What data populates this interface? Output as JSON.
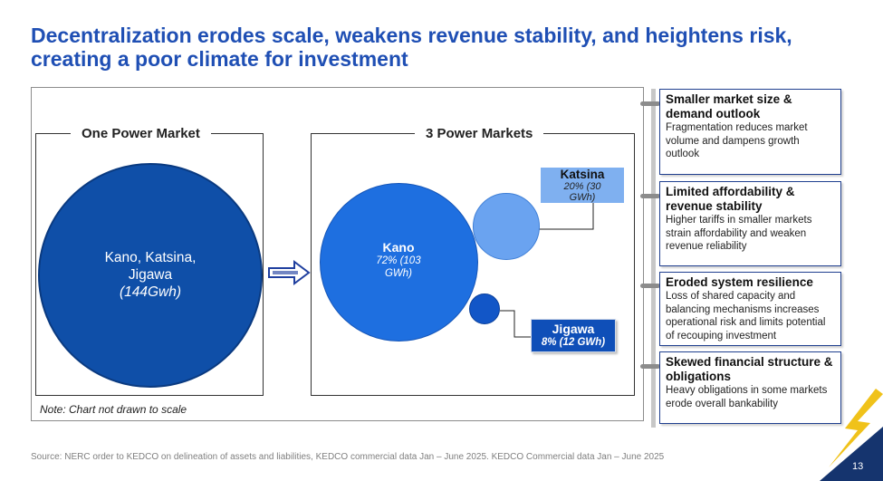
{
  "title": "Decentralization erodes scale, weakens revenue stability, and heightens risk, creating a poor climate for investment",
  "one_market": {
    "label": "One Power Market",
    "bubble_line1": "Kano, Katsina,",
    "bubble_line2": "Jigawa",
    "bubble_value": "(144Gwh)"
  },
  "three_markets": {
    "label": "3 Power Markets",
    "kano_name": "Kano",
    "kano_value": "72% (103 GWh)",
    "katsina_name": "Katsina",
    "katsina_value": "20% (30 GWh)",
    "jigawa_name": "Jigawa",
    "jigawa_value": "8% (12 GWh)"
  },
  "note": "Note: Chart not drawn to scale",
  "panels": [
    {
      "heading": "Smaller market size & demand outlook",
      "body": "Fragmentation reduces market volume and dampens growth outlook"
    },
    {
      "heading": "Limited affordability & revenue stability",
      "body": "Higher tariffs in smaller markets strain affordability and weaken revenue reliability"
    },
    {
      "heading": "Eroded system resilience",
      "body": "Loss of shared capacity and balancing mechanisms increases operational risk and limits potential of recouping investment"
    },
    {
      "heading": "Skewed financial structure & obligations",
      "body": "Heavy obligations in some markets erode overall bankability"
    }
  ],
  "source": "Source: NERC order to KEDCO on delineation of assets and liabilities, KEDCO commercial data Jan – June 2025. KEDCO Commercial data Jan – June 2025",
  "page_number": "13",
  "colors": {
    "title": "#1f4fb4",
    "big_bubble": "#0f4fa8",
    "kano_bubble": "#1e6fe0",
    "katsina_bubble": "#6aa3f0",
    "jigawa_bubble": "#1256c7",
    "katsina_label_bg": "#7fb0f0",
    "jigawa_label_bg": "#0f4fb8",
    "bolt": "#f0c21a",
    "corner": "#15346e"
  }
}
